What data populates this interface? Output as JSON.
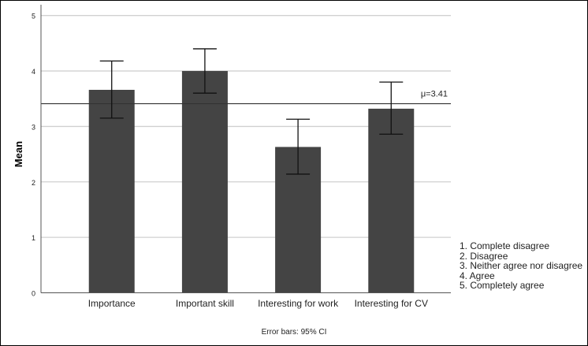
{
  "chart_data": {
    "type": "bar",
    "ylabel": "Mean",
    "xlabel": "",
    "ylim": [
      0,
      5
    ],
    "yticks": [
      "0",
      "1",
      "2",
      "3",
      "4",
      "5"
    ],
    "grid": true,
    "categories": [
      "Importance",
      "Important skill",
      "Interesting for work",
      "Interesting for CV"
    ],
    "values": [
      3.66,
      4.0,
      2.63,
      3.32
    ],
    "error_bars": {
      "label": "Error bars: 95% CI",
      "lower": [
        3.15,
        3.6,
        2.14,
        2.86
      ],
      "upper": [
        4.18,
        4.4,
        3.13,
        3.8
      ]
    },
    "reference_line": {
      "value": 3.41,
      "label": "μ=3.41"
    },
    "legend": {
      "placement": "bottom-right",
      "items": [
        "1. Complete disagree",
        "2. Disagree",
        "3. Neither agree nor disagree",
        "4. Agree",
        "5. Completely agree"
      ]
    },
    "colors": {
      "bar": "#444444",
      "grid": "#d0d0d0",
      "axis": "#555555"
    }
  }
}
